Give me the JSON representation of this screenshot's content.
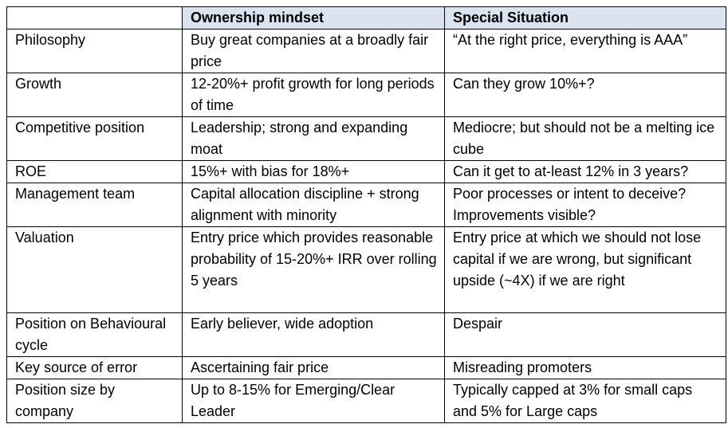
{
  "table": {
    "headers": [
      "",
      "Ownership mindset",
      "Special Situation"
    ],
    "rows": [
      [
        "Philosophy",
        "Buy great companies at a broadly fair price",
        "“At the right price, everything is AAA”"
      ],
      [
        "Growth",
        "12-20%+ profit growth for long periods of time",
        "Can they grow 10%+?"
      ],
      [
        "Competitive position",
        "Leadership; strong and expanding moat",
        "Mediocre; but should not be a melting ice cube"
      ],
      [
        "ROE",
        "15%+ with bias for 18%+",
        "Can it get to at-least 12% in 3 years?"
      ],
      [
        "Management team",
        "Capital allocation discipline + strong alignment with minority",
        "Poor processes or intent to deceive? Improvements visible?"
      ],
      [
        "Valuation",
        "Entry price which provides reasonable probability of 15-20%+ IRR over rolling 5 years",
        "Entry price at which we should not lose capital if we are wrong, but significant upside (~4X) if we are right"
      ],
      [
        "Position on Behavioural cycle",
        "Early believer, wide adoption",
        "Despair"
      ],
      [
        "Key source of error",
        "Ascertaining fair price",
        "Misreading promoters"
      ],
      [
        "Position size by company",
        "Up to 8-15% for Emerging/Clear Leader",
        "Typically capped at 3% for small caps and 5% for Large caps"
      ]
    ]
  },
  "colors": {
    "header_background": "#dbe3f0",
    "border": "#000000",
    "text": "#000000"
  }
}
